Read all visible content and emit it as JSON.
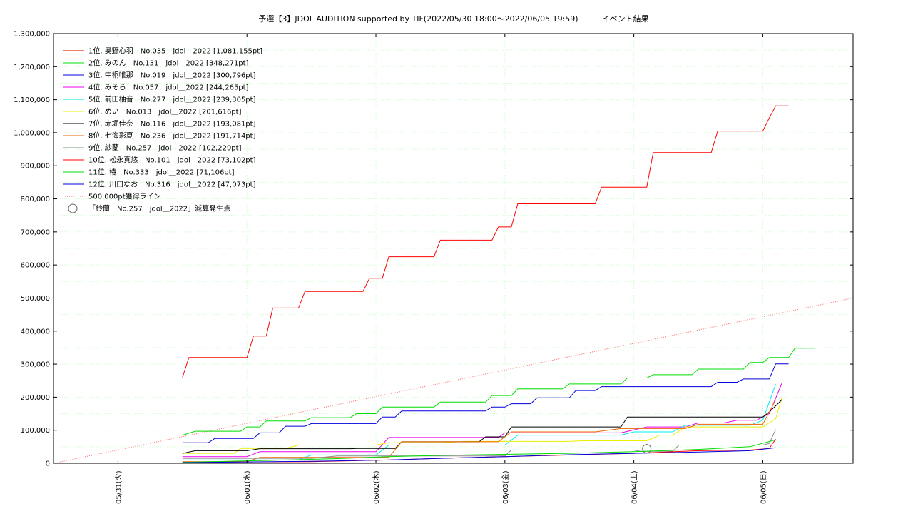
{
  "chart_data": {
    "type": "line",
    "title": "予選【3】JDOL AUDITION supported by TIF(2022/05/30 18:00～2022/06/05 19:59)　　　イベント結果",
    "x_ticks": [
      "05/31(火)",
      "06/01(水)",
      "06/02(木)",
      "06/03(金)",
      "06/04(土)",
      "06/05(日)"
    ],
    "y_ticks": [
      "0",
      "100,000",
      "200,000",
      "300,000",
      "400,000",
      "500,000",
      "600,000",
      "700,000",
      "800,000",
      "900,000",
      "1,000,000",
      "1,100,000",
      "1,200,000",
      "1,300,000"
    ],
    "x_range_days": [
      0,
      6.2
    ],
    "ylim": [
      0,
      1300000
    ],
    "grid": true,
    "legend_position": "top-left",
    "series": [
      {
        "name": "1位. 奥野心羽　No.035　jdol＿2022 [1,081,155pt]",
        "color": "#ff0000",
        "points": [
          [
            1.0,
            260000
          ],
          [
            1.05,
            320000
          ],
          [
            1.5,
            320000
          ],
          [
            1.55,
            385000
          ],
          [
            1.65,
            385000
          ],
          [
            1.7,
            470000
          ],
          [
            1.9,
            470000
          ],
          [
            1.95,
            520000
          ],
          [
            2.4,
            520000
          ],
          [
            2.45,
            560000
          ],
          [
            2.55,
            560000
          ],
          [
            2.6,
            625000
          ],
          [
            2.95,
            625000
          ],
          [
            3.0,
            675000
          ],
          [
            3.4,
            675000
          ],
          [
            3.45,
            715000
          ],
          [
            3.55,
            715000
          ],
          [
            3.6,
            785000
          ],
          [
            4.2,
            785000
          ],
          [
            4.25,
            835000
          ],
          [
            4.6,
            835000
          ],
          [
            4.65,
            940000
          ],
          [
            5.1,
            940000
          ],
          [
            5.15,
            1005000
          ],
          [
            5.5,
            1005000
          ],
          [
            5.55,
            1045000
          ],
          [
            5.6,
            1081155
          ],
          [
            5.7,
            1081155
          ]
        ]
      },
      {
        "name": "2位. みのん　No.131　jdol＿2022 [348,271pt]",
        "color": "#00dd00",
        "points": [
          [
            1.0,
            85000
          ],
          [
            1.1,
            97000
          ],
          [
            1.45,
            97000
          ],
          [
            1.5,
            110000
          ],
          [
            1.6,
            110000
          ],
          [
            1.65,
            128000
          ],
          [
            1.95,
            128000
          ],
          [
            2.0,
            138000
          ],
          [
            2.3,
            138000
          ],
          [
            2.35,
            150000
          ],
          [
            2.5,
            150000
          ],
          [
            2.55,
            170000
          ],
          [
            2.95,
            170000
          ],
          [
            3.0,
            185000
          ],
          [
            3.35,
            185000
          ],
          [
            3.4,
            205000
          ],
          [
            3.55,
            205000
          ],
          [
            3.6,
            225000
          ],
          [
            3.95,
            225000
          ],
          [
            4.0,
            240000
          ],
          [
            4.4,
            240000
          ],
          [
            4.45,
            258000
          ],
          [
            4.6,
            258000
          ],
          [
            4.65,
            268000
          ],
          [
            4.95,
            268000
          ],
          [
            5.0,
            285000
          ],
          [
            5.35,
            285000
          ],
          [
            5.4,
            305000
          ],
          [
            5.5,
            305000
          ],
          [
            5.55,
            320000
          ],
          [
            5.7,
            320000
          ],
          [
            5.75,
            348271
          ],
          [
            5.9,
            348271
          ]
        ]
      },
      {
        "name": "3位. 中桐唯那　No.019　jdol＿2022 [300,796pt]",
        "color": "#0000dd",
        "points": [
          [
            1.0,
            62000
          ],
          [
            1.2,
            62000
          ],
          [
            1.25,
            75000
          ],
          [
            1.55,
            75000
          ],
          [
            1.6,
            92000
          ],
          [
            1.75,
            92000
          ],
          [
            1.8,
            112000
          ],
          [
            1.95,
            112000
          ],
          [
            2.0,
            120000
          ],
          [
            2.5,
            120000
          ],
          [
            2.55,
            140000
          ],
          [
            2.65,
            140000
          ],
          [
            2.7,
            158000
          ],
          [
            3.35,
            158000
          ],
          [
            3.4,
            170000
          ],
          [
            3.5,
            170000
          ],
          [
            3.55,
            180000
          ],
          [
            3.7,
            180000
          ],
          [
            3.75,
            198000
          ],
          [
            4.0,
            198000
          ],
          [
            4.05,
            220000
          ],
          [
            4.2,
            220000
          ],
          [
            4.25,
            232000
          ],
          [
            5.1,
            232000
          ],
          [
            5.15,
            245000
          ],
          [
            5.3,
            245000
          ],
          [
            5.35,
            255000
          ],
          [
            5.55,
            255000
          ],
          [
            5.6,
            300796
          ],
          [
            5.7,
            300796
          ]
        ]
      },
      {
        "name": "4位. みそら　No.057　jdol＿2022 [244,265pt]",
        "color": "#ee00ee",
        "points": [
          [
            1.0,
            20000
          ],
          [
            1.5,
            20000
          ],
          [
            1.6,
            35000
          ],
          [
            2.5,
            35000
          ],
          [
            2.6,
            78000
          ],
          [
            3.45,
            78000
          ],
          [
            3.5,
            92000
          ],
          [
            4.4,
            92000
          ],
          [
            4.6,
            110000
          ],
          [
            4.9,
            110000
          ],
          [
            5.0,
            122000
          ],
          [
            5.2,
            122000
          ],
          [
            5.3,
            130000
          ],
          [
            5.45,
            130000
          ],
          [
            5.55,
            150000
          ],
          [
            5.65,
            244265
          ]
        ]
      },
      {
        "name": "5位. 前田柚音　No.277　jdol＿2022 [239,305pt]",
        "color": "#00eeee",
        "points": [
          [
            1.0,
            10000
          ],
          [
            1.9,
            10000
          ],
          [
            2.0,
            25000
          ],
          [
            2.5,
            25000
          ],
          [
            2.6,
            55000
          ],
          [
            3.5,
            55000
          ],
          [
            3.6,
            85000
          ],
          [
            4.4,
            85000
          ],
          [
            4.5,
            95000
          ],
          [
            4.8,
            95000
          ],
          [
            4.9,
            115000
          ],
          [
            5.4,
            115000
          ],
          [
            5.5,
            130000
          ],
          [
            5.6,
            239305
          ]
        ]
      },
      {
        "name": "6位. めい　No.013　jdol＿2022 [201,616pt]",
        "color": "#eeee00",
        "points": [
          [
            1.0,
            30000
          ],
          [
            1.4,
            30000
          ],
          [
            1.45,
            45000
          ],
          [
            1.8,
            45000
          ],
          [
            1.9,
            55000
          ],
          [
            2.5,
            55000
          ],
          [
            2.6,
            62000
          ],
          [
            3.0,
            62000
          ],
          [
            3.2,
            66000
          ],
          [
            4.0,
            66000
          ],
          [
            4.1,
            68000
          ],
          [
            4.6,
            68000
          ],
          [
            4.7,
            85000
          ],
          [
            4.8,
            85000
          ],
          [
            4.9,
            110000
          ],
          [
            5.5,
            110000
          ],
          [
            5.6,
            135000
          ],
          [
            5.65,
            201616
          ]
        ]
      },
      {
        "name": "7位. 赤堀佳奈　No.116　jdol＿2022 [193,081pt]",
        "color": "#000000",
        "points": [
          [
            1.0,
            30000
          ],
          [
            1.1,
            38000
          ],
          [
            1.5,
            38000
          ],
          [
            1.6,
            44000
          ],
          [
            2.3,
            44000
          ],
          [
            2.35,
            45000
          ],
          [
            2.65,
            45000
          ],
          [
            2.7,
            65000
          ],
          [
            3.3,
            65000
          ],
          [
            3.35,
            80000
          ],
          [
            3.5,
            80000
          ],
          [
            3.55,
            110000
          ],
          [
            4.0,
            110000
          ],
          [
            4.1,
            110000
          ],
          [
            4.4,
            110000
          ],
          [
            4.45,
            140000
          ],
          [
            5.0,
            140000
          ],
          [
            5.1,
            140000
          ],
          [
            5.5,
            140000
          ],
          [
            5.55,
            155000
          ],
          [
            5.65,
            193081
          ]
        ]
      },
      {
        "name": "8位. 七海彩夏　No.236　jdol＿2022 [191,714pt]",
        "color": "#ee6600",
        "points": [
          [
            1.0,
            5000
          ],
          [
            1.5,
            5000
          ],
          [
            1.6,
            18000
          ],
          [
            2.6,
            18000
          ],
          [
            2.7,
            65000
          ],
          [
            3.45,
            65000
          ],
          [
            3.55,
            95000
          ],
          [
            4.2,
            95000
          ],
          [
            4.4,
            105000
          ],
          [
            4.9,
            105000
          ],
          [
            5.0,
            118000
          ],
          [
            5.5,
            118000
          ],
          [
            5.6,
            191714
          ]
        ]
      },
      {
        "name": "9位. 紗蘭　No.257　jdol＿2022 [102,229pt]",
        "color": "#888888",
        "points": [
          [
            1.0,
            15000
          ],
          [
            2.0,
            15000
          ],
          [
            2.2,
            22000
          ],
          [
            3.0,
            22000
          ],
          [
            3.5,
            22000
          ],
          [
            3.55,
            40000
          ],
          [
            4.5,
            40000
          ],
          [
            4.55,
            36000
          ],
          [
            4.8,
            36000
          ],
          [
            4.85,
            55000
          ],
          [
            5.5,
            55000
          ],
          [
            5.55,
            60000
          ],
          [
            5.6,
            102229
          ]
        ]
      },
      {
        "name": "10位. 松永真悠　No.101　jdol＿2022 [73,102pt]",
        "color": "#ff0000",
        "points": [
          [
            1.0,
            3000
          ],
          [
            2.0,
            5000
          ],
          [
            2.6,
            10000
          ],
          [
            3.0,
            15000
          ],
          [
            3.5,
            20000
          ],
          [
            4.0,
            25000
          ],
          [
            4.5,
            30000
          ],
          [
            5.0,
            38000
          ],
          [
            5.4,
            40000
          ],
          [
            5.55,
            45000
          ],
          [
            5.6,
            73102
          ]
        ]
      },
      {
        "name": "11位. 椿　No.333　jdol＿2022 [71,106pt]",
        "color": "#00dd00",
        "points": [
          [
            1.0,
            3000
          ],
          [
            1.6,
            8000
          ],
          [
            2.2,
            14000
          ],
          [
            2.6,
            20000
          ],
          [
            3.0,
            24000
          ],
          [
            3.5,
            27000
          ],
          [
            4.0,
            30000
          ],
          [
            4.5,
            35000
          ],
          [
            5.0,
            42000
          ],
          [
            5.4,
            50000
          ],
          [
            5.6,
            71106
          ]
        ]
      },
      {
        "name": "12位. 川口なお　No.316　jdol＿2022 [47,073pt]",
        "color": "#0000dd",
        "points": [
          [
            1.0,
            2000
          ],
          [
            1.5,
            4000
          ],
          [
            2.0,
            6000
          ],
          [
            2.6,
            10000
          ],
          [
            3.0,
            15000
          ],
          [
            3.5,
            20000
          ],
          [
            4.0,
            26000
          ],
          [
            4.5,
            30000
          ],
          [
            5.0,
            34000
          ],
          [
            5.4,
            38000
          ],
          [
            5.6,
            47073
          ]
        ]
      }
    ],
    "reference_line": {
      "name": "500,000pt獲得ライン",
      "color": "#ff6666",
      "points": [
        [
          0,
          0
        ],
        [
          6.2,
          500000
        ]
      ]
    },
    "marker": {
      "name": "「紗蘭　No.257　jdol＿2022」減算発生点",
      "color": "#666666",
      "x": 4.6,
      "y": 44000
    }
  }
}
